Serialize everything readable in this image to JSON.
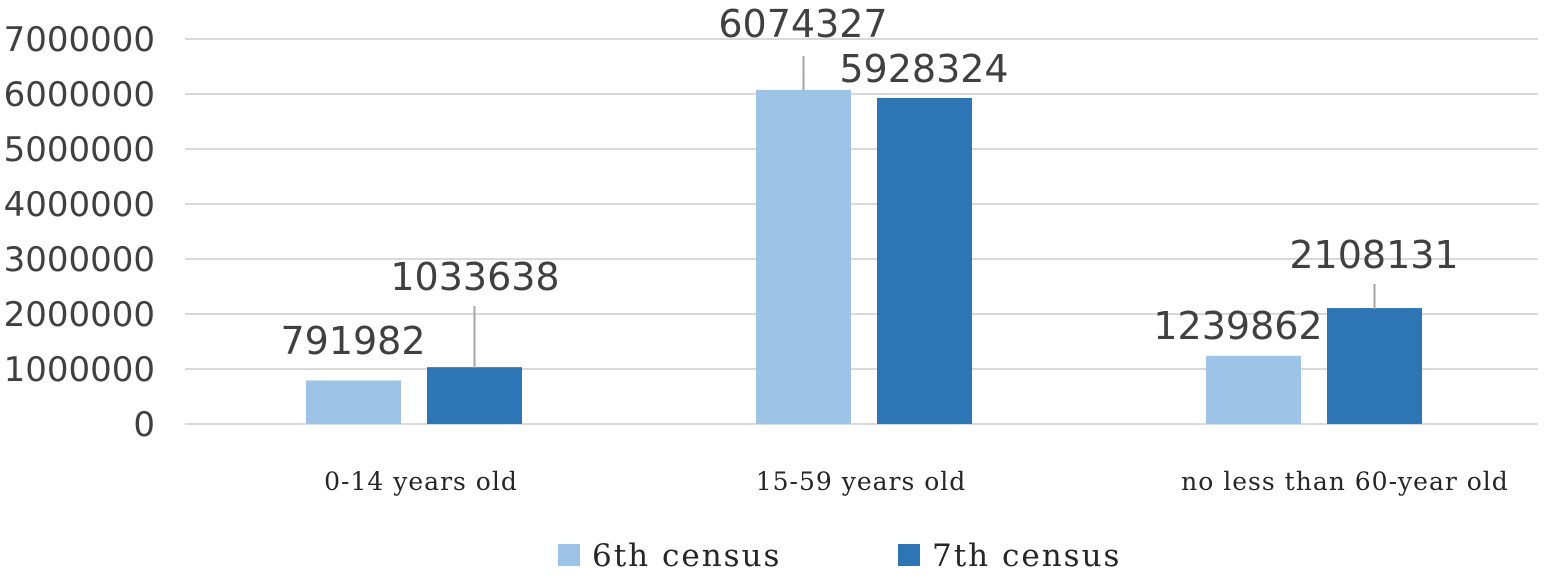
{
  "chart_data": {
    "type": "bar",
    "categories": [
      "0-14 years old",
      "15-59 years old",
      "no less than 60-year old"
    ],
    "series": [
      {
        "name": "6th census",
        "values": [
          791982,
          6074327,
          1239862
        ],
        "color": "#9dc3e6"
      },
      {
        "name": "7th census",
        "values": [
          1033638,
          5928324,
          2108131
        ],
        "color": "#2e75b6"
      }
    ],
    "y_ticks": [
      "0",
      "1000000",
      "2000000",
      "3000000",
      "4000000",
      "5000000",
      "6000000",
      "7000000"
    ],
    "ylim": [
      0,
      7000000
    ],
    "grid": true,
    "legend_position": "bottom",
    "data_labels": [
      "791982",
      "1033638",
      "6074327",
      "5928324",
      "1239862",
      "2108131"
    ]
  }
}
